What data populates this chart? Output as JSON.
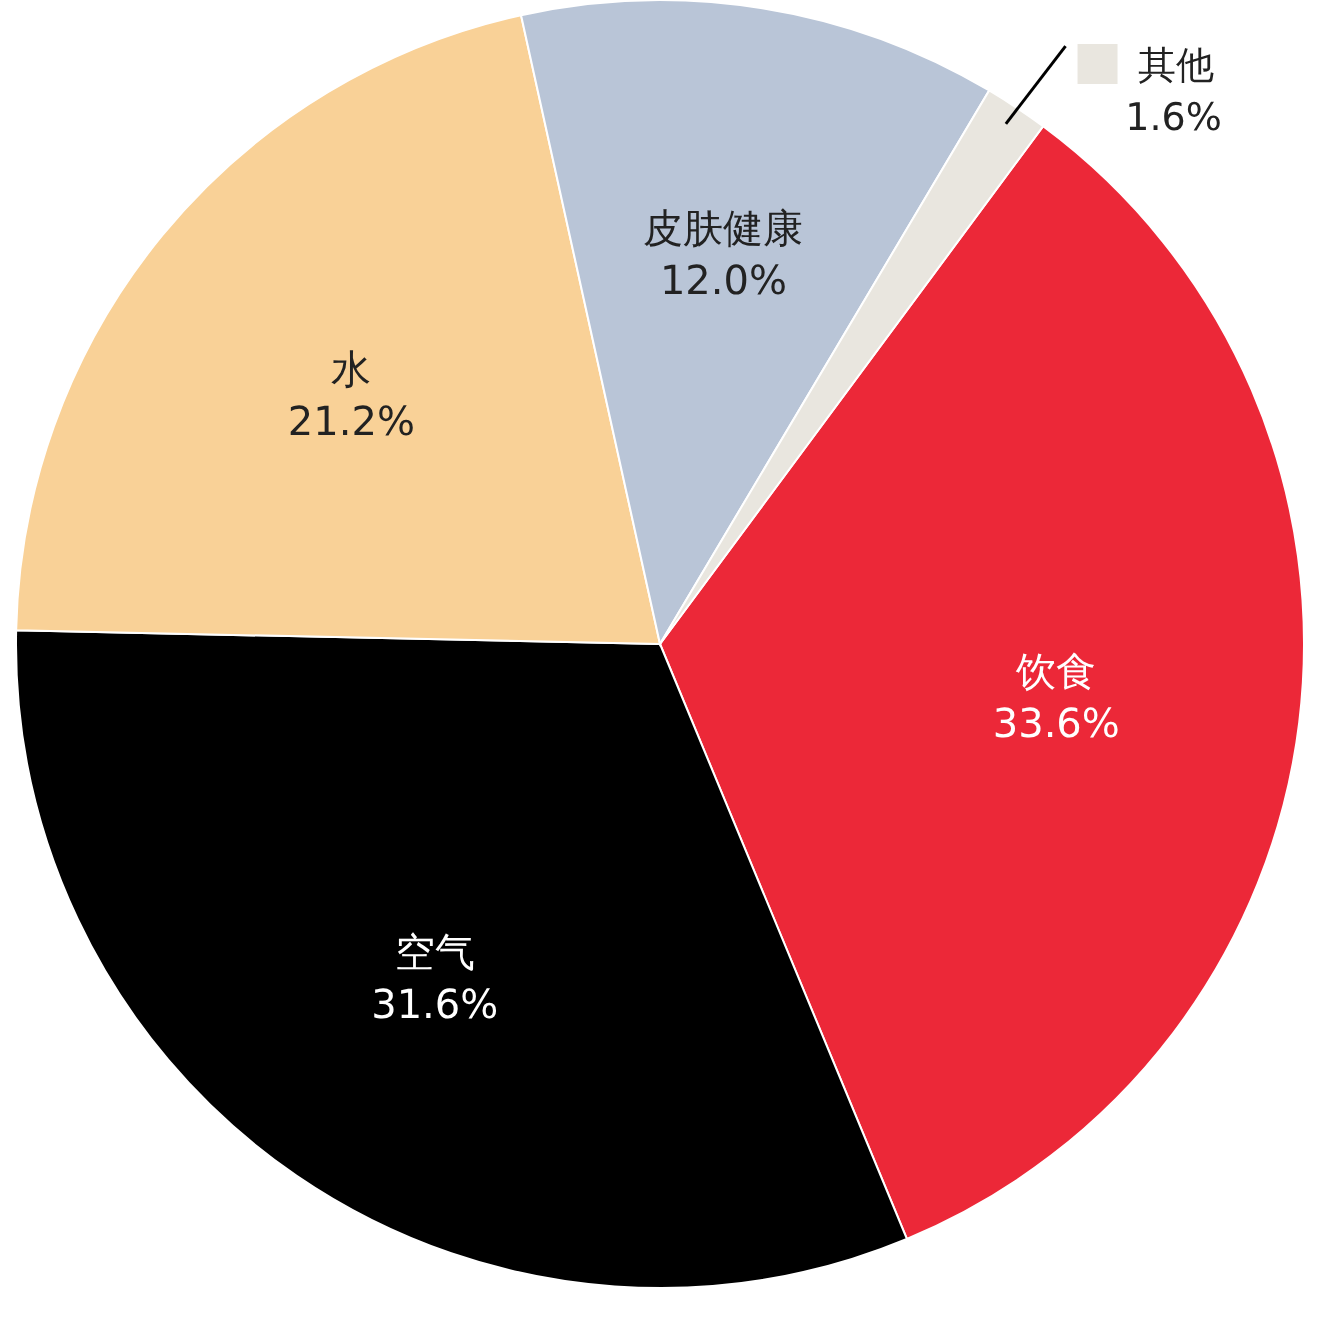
{
  "chart_data": {
    "type": "pie",
    "categories": [
      "饮食",
      "空气",
      "水",
      "皮肤健康",
      "其他"
    ],
    "values": [
      33.6,
      31.6,
      21.2,
      12.0,
      1.6
    ],
    "colors": [
      "#ec2838",
      "#000000",
      "#f9d197",
      "#b9c5d7",
      "#e9e6df"
    ],
    "value_labels": [
      "33.6%",
      "31.6%",
      "21.2%",
      "12.0%",
      "1.6%"
    ],
    "legend": "top right"
  }
}
